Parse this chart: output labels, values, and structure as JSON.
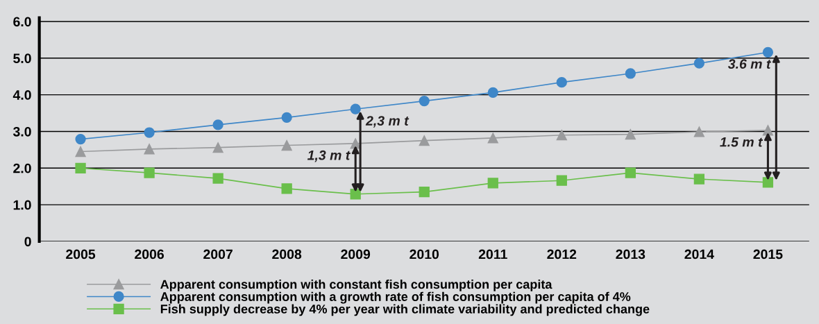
{
  "chart_data": {
    "type": "line",
    "categories": [
      "2005",
      "2006",
      "2007",
      "2008",
      "2009",
      "2010",
      "2011",
      "2012",
      "2013",
      "2014",
      "2015"
    ],
    "series": [
      {
        "name": "Apparent consumption with constant fish consumption per capita",
        "color": "#9a9b9d",
        "marker": "triangle",
        "values": [
          2.45,
          2.52,
          2.56,
          2.62,
          2.67,
          2.75,
          2.82,
          2.9,
          2.92,
          2.99,
          3.03
        ]
      },
      {
        "name": "Apparent consumption with a growth rate of fish consumption per capita of 4%",
        "color": "#3f87c8",
        "marker": "circle",
        "values": [
          2.79,
          2.97,
          3.18,
          3.38,
          3.61,
          3.83,
          4.06,
          4.34,
          4.58,
          4.86,
          5.16
        ]
      },
      {
        "name": "Fish supply decrease by 4% per year with climate variability and predicted change",
        "color": "#6abf4b",
        "marker": "square",
        "values": [
          2.0,
          1.87,
          1.72,
          1.44,
          1.29,
          1.35,
          1.59,
          1.66,
          1.87,
          1.7,
          1.61
        ]
      }
    ],
    "ylim": [
      0,
      6.1
    ],
    "yticks": [
      {
        "value": 0,
        "label": "0"
      },
      {
        "value": 1,
        "label": "1.0"
      },
      {
        "value": 2,
        "label": "2.0"
      },
      {
        "value": 3,
        "label": "3.0"
      },
      {
        "value": 4,
        "label": "4.0"
      },
      {
        "value": 5,
        "label": "5.0"
      },
      {
        "value": 6,
        "label": "6.0"
      }
    ],
    "grid": "y",
    "legend": "bottom",
    "annotations": [
      {
        "text": "1,3 m t",
        "x": "2009",
        "y": 2.67
      },
      {
        "text": "2,3 m t",
        "x": "2009",
        "y": 3.61
      },
      {
        "text": "1.5 m t",
        "x": "2015",
        "y": 3.03
      },
      {
        "text": "3.6 m t",
        "x": "2015",
        "y": 5.16
      }
    ]
  }
}
